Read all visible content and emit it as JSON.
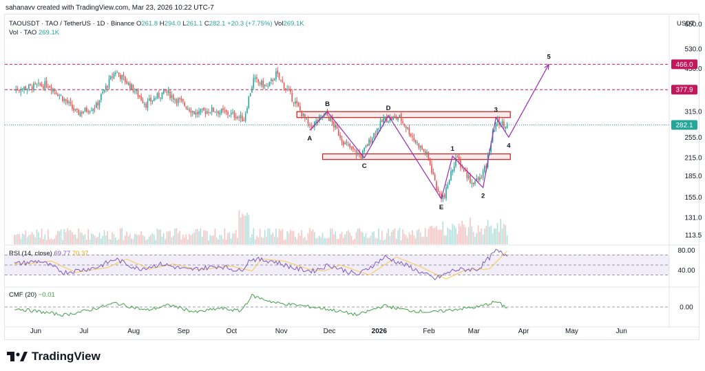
{
  "top_note": "sahanavv created with TradingView.com, Mar 23, 2026 10:22 UTC-7",
  "header": {
    "symbol": "TAOUSDT · TAO / TetherUS · 1D · Binance",
    "o_label": "O",
    "o_value": "261.8",
    "h_label": "H",
    "h_value": "294.0",
    "l_label": "L",
    "l_value": "261.1",
    "c_label": "C",
    "c_value": "282.1",
    "change": "+20.3 (+7.75%)",
    "vol_label": "Vol",
    "vol_value": "269.1K",
    "vol_row_label": "Vol · TAO",
    "vol_row_value": "269.1K"
  },
  "unit_label": "USDT",
  "brand": "TradingView",
  "colors": {
    "up": "#26a69a",
    "down": "#ef5350",
    "rsi": "#7e57c2",
    "rsi_ma": "#f9c74f",
    "cmf": "#43a047",
    "resistance": "#c2185b",
    "wave": "#9c27b0"
  },
  "chart_data": [
    {
      "type": "candlestick",
      "title": "TAOUSDT · TAO / TetherUS · 1D · Binance",
      "scale": "log",
      "y_ticks": [
        650.0,
        530.0,
        450.0,
        377.9,
        315.0,
        255.0,
        215.0,
        185.0,
        155.0,
        131.0,
        113.5
      ],
      "x_ticks": [
        "Jun",
        "Jul",
        "Aug",
        "Sep",
        "Oct",
        "Nov",
        "Dec",
        "2026",
        "Feb",
        "Mar",
        "Apr",
        "May",
        "Jun"
      ],
      "ylim": [
        105,
        700
      ],
      "last_price": 282.1,
      "price_labels": [
        {
          "value": 466.0,
          "label": "466.0",
          "color": "#c2185b"
        },
        {
          "value": 377.9,
          "label": "377.9",
          "color": "#c2185b"
        },
        {
          "value": 282.1,
          "label": "282.1",
          "color": "#26a69a"
        }
      ],
      "horizontal_lines": [
        466.0,
        377.9
      ],
      "zones": [
        {
          "from": "2025-11-12",
          "to": "2026-03-25",
          "low": 300,
          "high": 315
        },
        {
          "from": "2025-11-28",
          "to": "2026-03-25",
          "low": 212,
          "high": 222
        }
      ],
      "anchors": [
        [
          "2025-05-20",
          378
        ],
        [
          "2025-06-10",
          395
        ],
        [
          "2025-06-28",
          310
        ],
        [
          "2025-07-10",
          330
        ],
        [
          "2025-07-22",
          440
        ],
        [
          "2025-08-10",
          335
        ],
        [
          "2025-08-22",
          372
        ],
        [
          "2025-09-10",
          310
        ],
        [
          "2025-09-20",
          320
        ],
        [
          "2025-10-05",
          305
        ],
        [
          "2025-10-10",
          295
        ],
        [
          "2025-10-16",
          410
        ],
        [
          "2025-10-25",
          385
        ],
        [
          "2025-10-30",
          430
        ],
        [
          "2025-11-08",
          360
        ],
        [
          "2025-11-20",
          275
        ],
        [
          "2025-11-30",
          310
        ],
        [
          "2025-12-12",
          240
        ],
        [
          "2025-12-22",
          218
        ],
        [
          "2026-01-05",
          295
        ],
        [
          "2026-01-15",
          300
        ],
        [
          "2026-01-25",
          245
        ],
        [
          "2026-02-01",
          220
        ],
        [
          "2026-02-08",
          160
        ],
        [
          "2026-02-12",
          155
        ],
        [
          "2026-02-19",
          215
        ],
        [
          "2026-03-01",
          175
        ],
        [
          "2026-03-06",
          180
        ],
        [
          "2026-03-10",
          200
        ],
        [
          "2026-03-16",
          290
        ],
        [
          "2026-03-23",
          282
        ]
      ],
      "wave_points": [
        {
          "label": "A",
          "date": "2025-11-20",
          "value": 270
        },
        {
          "label": "B",
          "date": "2025-12-01",
          "value": 315
        },
        {
          "label": "C",
          "date": "2025-12-24",
          "value": 215
        },
        {
          "label": "D",
          "date": "2026-01-08",
          "value": 305
        },
        {
          "label": "E",
          "date": "2026-02-10",
          "value": 153
        },
        {
          "label": "1",
          "date": "2026-02-17",
          "value": 218
        },
        {
          "label": "2",
          "date": "2026-03-08",
          "value": 168
        },
        {
          "label": "3",
          "date": "2026-03-16",
          "value": 300
        },
        {
          "label": "4",
          "date": "2026-03-24",
          "value": 255
        },
        {
          "label": "5",
          "date": "2026-04-18",
          "value": 466
        }
      ]
    },
    {
      "type": "bar",
      "title": "Vol · TAO",
      "last_value": "269.1K"
    },
    {
      "type": "line",
      "title": "RSI (14, close)",
      "series": [
        {
          "name": "RSI",
          "last": "69.77"
        },
        {
          "name": "RSI-based MA",
          "last": "70.37"
        }
      ],
      "levels": [
        70,
        50,
        30
      ],
      "y_ticks": [
        "80.00",
        "40.00"
      ],
      "ylim": [
        10,
        90
      ],
      "anchors": [
        [
          "2025-05-20",
          52
        ],
        [
          "2025-06-05",
          58
        ],
        [
          "2025-06-20",
          35
        ],
        [
          "2025-07-10",
          45
        ],
        [
          "2025-07-22",
          62
        ],
        [
          "2025-08-05",
          42
        ],
        [
          "2025-08-20",
          52
        ],
        [
          "2025-09-05",
          40
        ],
        [
          "2025-09-25",
          48
        ],
        [
          "2025-10-08",
          38
        ],
        [
          "2025-10-14",
          62
        ],
        [
          "2025-10-28",
          58
        ],
        [
          "2025-11-12",
          42
        ],
        [
          "2025-11-22",
          38
        ],
        [
          "2025-12-02",
          50
        ],
        [
          "2025-12-20",
          30
        ],
        [
          "2026-01-06",
          66
        ],
        [
          "2026-01-20",
          48
        ],
        [
          "2026-02-06",
          22
        ],
        [
          "2026-02-18",
          40
        ],
        [
          "2026-03-05",
          42
        ],
        [
          "2026-03-16",
          78
        ],
        [
          "2026-03-23",
          70
        ]
      ]
    },
    {
      "type": "line",
      "title": "CMF (20)",
      "series": [
        {
          "name": "CMF",
          "last": "−0.01"
        }
      ],
      "y_ticks": [
        "0.00"
      ],
      "ylim": [
        -0.3,
        0.3
      ],
      "anchors": [
        [
          "2025-05-20",
          -0.02
        ],
        [
          "2025-06-01",
          -0.06
        ],
        [
          "2025-06-20",
          -0.12
        ],
        [
          "2025-07-05",
          -0.05
        ],
        [
          "2025-07-22",
          0.06
        ],
        [
          "2025-08-10",
          -0.05
        ],
        [
          "2025-08-25",
          0.03
        ],
        [
          "2025-09-10",
          -0.08
        ],
        [
          "2025-09-25",
          -0.02
        ],
        [
          "2025-10-08",
          -0.06
        ],
        [
          "2025-10-15",
          0.17
        ],
        [
          "2025-10-30",
          0.06
        ],
        [
          "2025-11-15",
          0.02
        ],
        [
          "2025-12-01",
          -0.03
        ],
        [
          "2025-12-20",
          -0.12
        ],
        [
          "2026-01-05",
          0.02
        ],
        [
          "2026-01-20",
          -0.05
        ],
        [
          "2026-02-05",
          -0.08
        ],
        [
          "2026-02-20",
          -0.03
        ],
        [
          "2026-03-05",
          0.0
        ],
        [
          "2026-03-16",
          0.08
        ],
        [
          "2026-03-23",
          -0.01
        ]
      ]
    }
  ]
}
